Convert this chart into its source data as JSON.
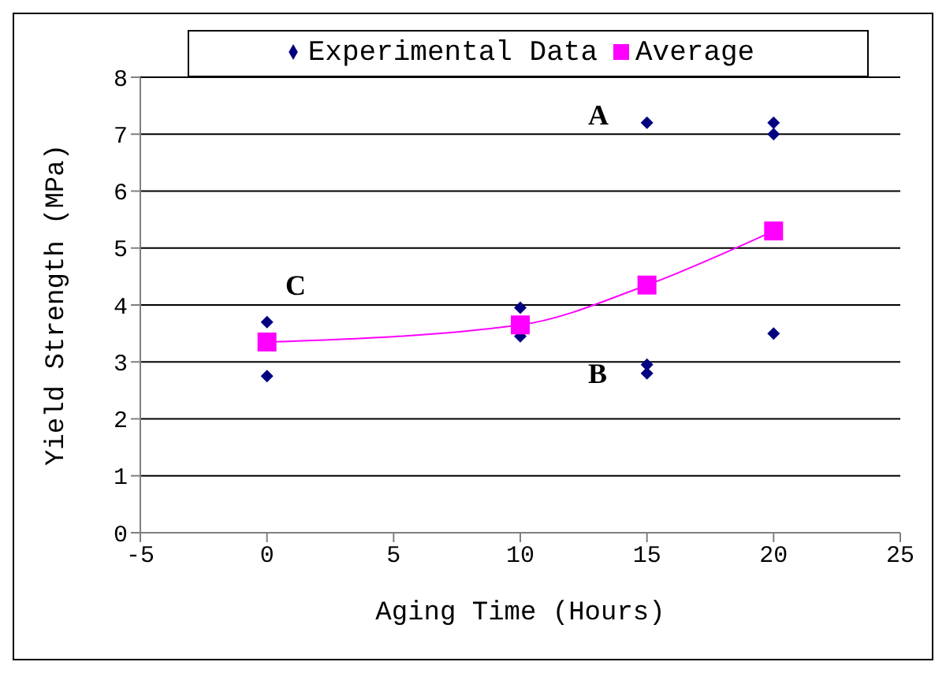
{
  "chart_data": {
    "type": "scatter",
    "xlabel": "Aging Time (Hours)",
    "ylabel": "Yield Strength (MPa)",
    "xlim": [
      -5,
      25
    ],
    "xticks": [
      -5,
      0,
      5,
      10,
      15,
      20,
      25
    ],
    "ylim": [
      0,
      8
    ],
    "yticks": [
      0,
      1,
      2,
      3,
      4,
      5,
      6,
      7,
      8
    ],
    "grid": "y",
    "legend": "top",
    "series": [
      {
        "name": "Experimental Data",
        "marker": "diamond",
        "color": "#000080",
        "x": [
          0,
          0,
          10,
          10,
          15,
          15,
          15,
          20,
          20,
          20
        ],
        "values": [
          3.7,
          2.75,
          3.95,
          3.45,
          7.2,
          2.95,
          2.8,
          7.2,
          7.0,
          3.5
        ]
      },
      {
        "name": "Average",
        "type": "line",
        "marker": "square",
        "color": "#ff00ff",
        "x": [
          0,
          10,
          15,
          20
        ],
        "values": [
          3.35,
          3.65,
          4.35,
          5.3
        ]
      }
    ],
    "annotations": [
      "A",
      "B",
      "C"
    ]
  }
}
